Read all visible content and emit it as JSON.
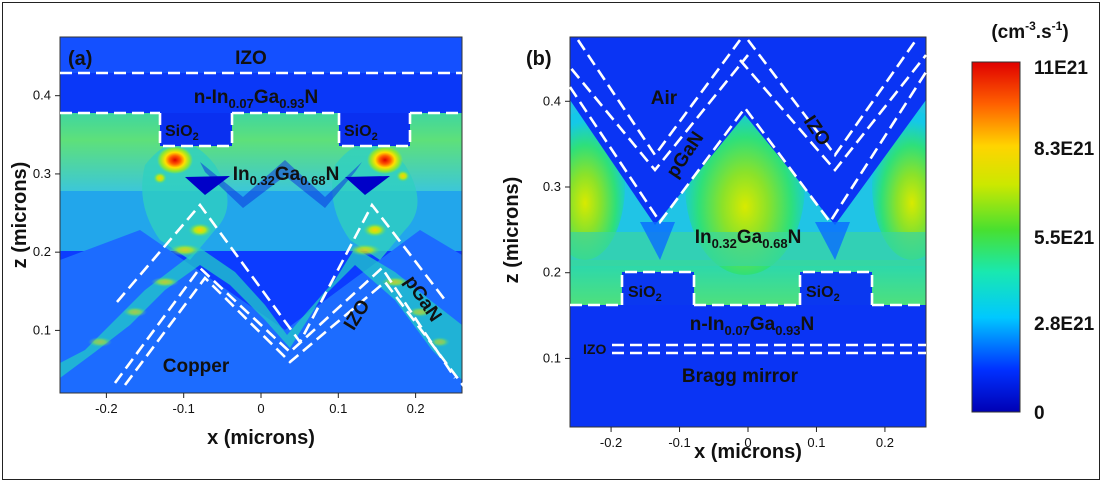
{
  "chart_data": [
    {
      "type": "heatmap",
      "panel_label": "(a)",
      "xlabel": "x (microns)",
      "ylabel": "z (microns)",
      "xlim": [
        -0.26,
        0.26
      ],
      "ylim": [
        0.02,
        0.475
      ],
      "x_ticks": [
        -0.2,
        -0.1,
        0,
        0.1,
        0.2
      ],
      "x_tick_labels": [
        "-0.2",
        "-0.1",
        "0",
        "0.1",
        "0.2"
      ],
      "y_ticks": [
        0.1,
        0.2,
        0.3,
        0.4
      ],
      "y_tick_labels": [
        "0.1",
        "0.2",
        "0.3",
        "0.4"
      ],
      "regions": [
        "IZO",
        "n-In0.07Ga0.93N",
        "SiO2",
        "SiO2",
        "In0.32Ga0.68N",
        "IZO",
        "pGaN",
        "Copper"
      ],
      "region_texts": {
        "izo_top": "IZO",
        "n_layer": {
          "base": "n-In",
          "sub1": "0.07",
          "mid": "Ga",
          "sub2": "0.93",
          "end": "N"
        },
        "sio2": {
          "base": "SiO",
          "sub": "2"
        },
        "ingan": {
          "base": "In",
          "sub1": "0.32",
          "mid": "Ga",
          "sub2": "0.68",
          "end": "N"
        },
        "izo_side": "IZO",
        "pgan": "pGaN",
        "copper": "Copper"
      },
      "hotspots": [
        {
          "x": -0.155,
          "z": 0.322,
          "value": 11.0
        },
        {
          "x": 0.155,
          "z": 0.322,
          "value": 11.0
        },
        {
          "x": -0.12,
          "z": 0.23,
          "value": 9.0
        },
        {
          "x": 0.11,
          "z": 0.23,
          "value": 9.0
        }
      ]
    },
    {
      "type": "heatmap",
      "panel_label": "(b)",
      "xlabel": "x (microns)",
      "ylabel": "z (microns)",
      "xlim": [
        -0.26,
        0.26
      ],
      "ylim": [
        0.02,
        0.475
      ],
      "x_ticks": [
        -0.2,
        -0.1,
        0,
        0.1,
        0.2
      ],
      "x_tick_labels": [
        "-0.2",
        "-0.1",
        "0",
        "0.1",
        "0.2"
      ],
      "y_ticks": [
        0.1,
        0.2,
        0.3,
        0.4
      ],
      "y_tick_labels": [
        "0.1",
        "0.2",
        "0.3",
        "0.4"
      ],
      "regions": [
        "Air",
        "pGaN",
        "IZO",
        "In0.32Ga0.68N",
        "SiO2",
        "SiO2",
        "n-In0.07Ga0.93N",
        "IZO",
        "Bragg mirror"
      ],
      "region_texts": {
        "air": "Air",
        "pgan": "pGaN",
        "izo": "IZO",
        "ingan": {
          "base": "In",
          "sub1": "0.32",
          "mid": "Ga",
          "sub2": "0.68",
          "end": "N"
        },
        "sio2": {
          "base": "SiO",
          "sub": "2"
        },
        "n_layer": {
          "base": "n-In",
          "sub1": "0.07",
          "mid": "Ga",
          "sub2": "0.93",
          "end": "N"
        },
        "izo_bottom": "IZO",
        "bragg": "Bragg mirror"
      },
      "hotspots": [
        {
          "x": 0.0,
          "z": 0.29,
          "value": 8.0
        },
        {
          "x": -0.25,
          "z": 0.28,
          "value": 7.5
        },
        {
          "x": 0.25,
          "z": 0.28,
          "value": 7.5
        }
      ]
    }
  ],
  "colorbar": {
    "unit": {
      "open": "(cm",
      "sup1": "-3",
      "dot": ".s",
      "sup2": "-1",
      "close": ")"
    },
    "range": [
      0,
      11
    ],
    "tick_values": [
      11,
      8.3,
      5.5,
      2.8,
      0
    ],
    "tick_labels": [
      "11E21",
      "8.3E21",
      "5.5E21",
      "2.8E21",
      "0"
    ],
    "colors": [
      "#0000b4",
      "#0030ff",
      "#00c8ff",
      "#19e8b0",
      "#48e030",
      "#cce800",
      "#ffd400",
      "#ff6000",
      "#e00000"
    ]
  }
}
